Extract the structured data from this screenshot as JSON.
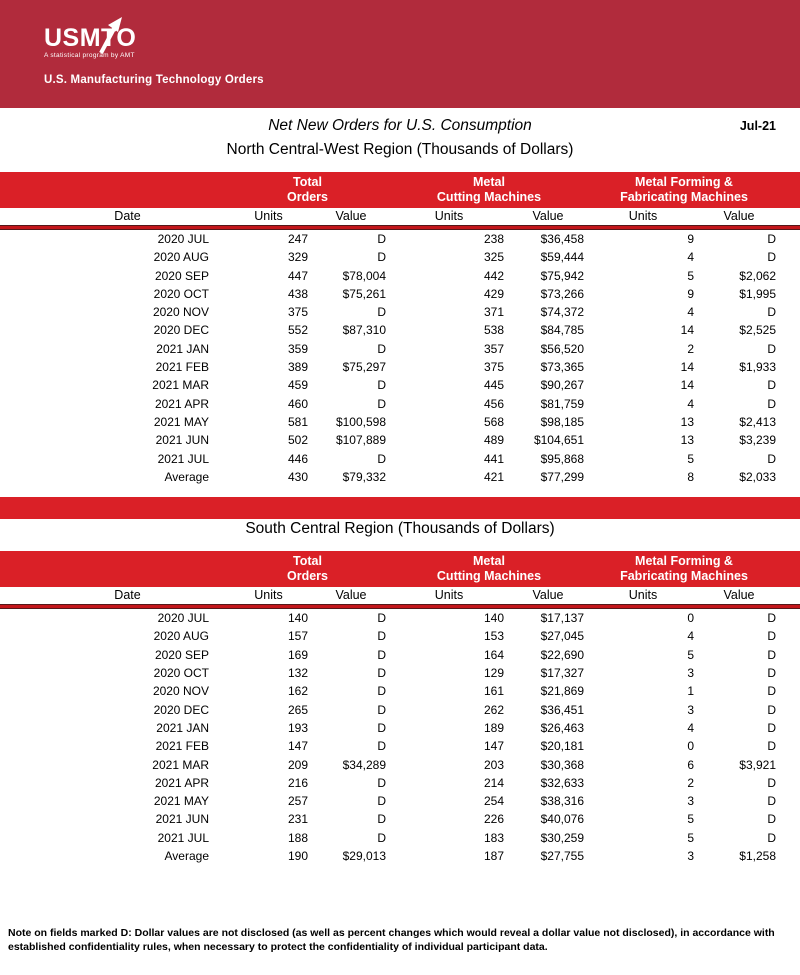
{
  "banner": {
    "logo_text": "USMTO",
    "logo_tagline": "A statistical program by AMT",
    "subtitle": "U.S. Manufacturing Technology Orders"
  },
  "page": {
    "title": "Net New Orders for U.S. Consumption",
    "report_date": "Jul-21",
    "note": "Note on fields marked D: Dollar values are not disclosed (as well as percent changes which would reveal a dollar value not disclosed), in accordance with established confidentiality rules, when necessary to protect the confidentiality of individual participant data."
  },
  "colors": {
    "banner_red": "#b12b3c",
    "band_red": "#da2027",
    "rule_red": "#c3161b"
  },
  "table_headers": {
    "date": "Date",
    "units": "Units",
    "value": "Value",
    "groups": [
      {
        "line1": "Total",
        "line2": "Orders"
      },
      {
        "line1": "Metal",
        "line2": "Cutting Machines"
      },
      {
        "line1": "Metal Forming &",
        "line2": "Fabricating Machines"
      }
    ]
  },
  "tables": [
    {
      "title": "North Central-West Region (Thousands of Dollars)",
      "rows": [
        [
          "2020 JUL",
          "247",
          "D",
          "238",
          "$36,458",
          "9",
          "D"
        ],
        [
          "2020 AUG",
          "329",
          "D",
          "325",
          "$59,444",
          "4",
          "D"
        ],
        [
          "2020 SEP",
          "447",
          "$78,004",
          "442",
          "$75,942",
          "5",
          "$2,062"
        ],
        [
          "2020 OCT",
          "438",
          "$75,261",
          "429",
          "$73,266",
          "9",
          "$1,995"
        ],
        [
          "2020 NOV",
          "375",
          "D",
          "371",
          "$74,372",
          "4",
          "D"
        ],
        [
          "2020 DEC",
          "552",
          "$87,310",
          "538",
          "$84,785",
          "14",
          "$2,525"
        ],
        [
          "2021 JAN",
          "359",
          "D",
          "357",
          "$56,520",
          "2",
          "D"
        ],
        [
          "2021 FEB",
          "389",
          "$75,297",
          "375",
          "$73,365",
          "14",
          "$1,933"
        ],
        [
          "2021 MAR",
          "459",
          "D",
          "445",
          "$90,267",
          "14",
          "D"
        ],
        [
          "2021 APR",
          "460",
          "D",
          "456",
          "$81,759",
          "4",
          "D"
        ],
        [
          "2021 MAY",
          "581",
          "$100,598",
          "568",
          "$98,185",
          "13",
          "$2,413"
        ],
        [
          "2021 JUN",
          "502",
          "$107,889",
          "489",
          "$104,651",
          "13",
          "$3,239"
        ],
        [
          "2021 JUL",
          "446",
          "D",
          "441",
          "$95,868",
          "5",
          "D"
        ]
      ],
      "average": [
        "Average",
        "430",
        "$79,332",
        "421",
        "$77,299",
        "8",
        "$2,033"
      ]
    },
    {
      "title": "South Central Region (Thousands of Dollars)",
      "rows": [
        [
          "2020 JUL",
          "140",
          "D",
          "140",
          "$17,137",
          "0",
          "D"
        ],
        [
          "2020 AUG",
          "157",
          "D",
          "153",
          "$27,045",
          "4",
          "D"
        ],
        [
          "2020 SEP",
          "169",
          "D",
          "164",
          "$22,690",
          "5",
          "D"
        ],
        [
          "2020 OCT",
          "132",
          "D",
          "129",
          "$17,327",
          "3",
          "D"
        ],
        [
          "2020 NOV",
          "162",
          "D",
          "161",
          "$21,869",
          "1",
          "D"
        ],
        [
          "2020 DEC",
          "265",
          "D",
          "262",
          "$36,451",
          "3",
          "D"
        ],
        [
          "2021 JAN",
          "193",
          "D",
          "189",
          "$26,463",
          "4",
          "D"
        ],
        [
          "2021 FEB",
          "147",
          "D",
          "147",
          "$20,181",
          "0",
          "D"
        ],
        [
          "2021 MAR",
          "209",
          "$34,289",
          "203",
          "$30,368",
          "6",
          "$3,921"
        ],
        [
          "2021 APR",
          "216",
          "D",
          "214",
          "$32,633",
          "2",
          "D"
        ],
        [
          "2021 MAY",
          "257",
          "D",
          "254",
          "$38,316",
          "3",
          "D"
        ],
        [
          "2021 JUN",
          "231",
          "D",
          "226",
          "$40,076",
          "5",
          "D"
        ],
        [
          "2021 JUL",
          "188",
          "D",
          "183",
          "$30,259",
          "5",
          "D"
        ]
      ],
      "average": [
        "Average",
        "190",
        "$29,013",
        "187",
        "$27,755",
        "3",
        "$1,258"
      ]
    }
  ]
}
